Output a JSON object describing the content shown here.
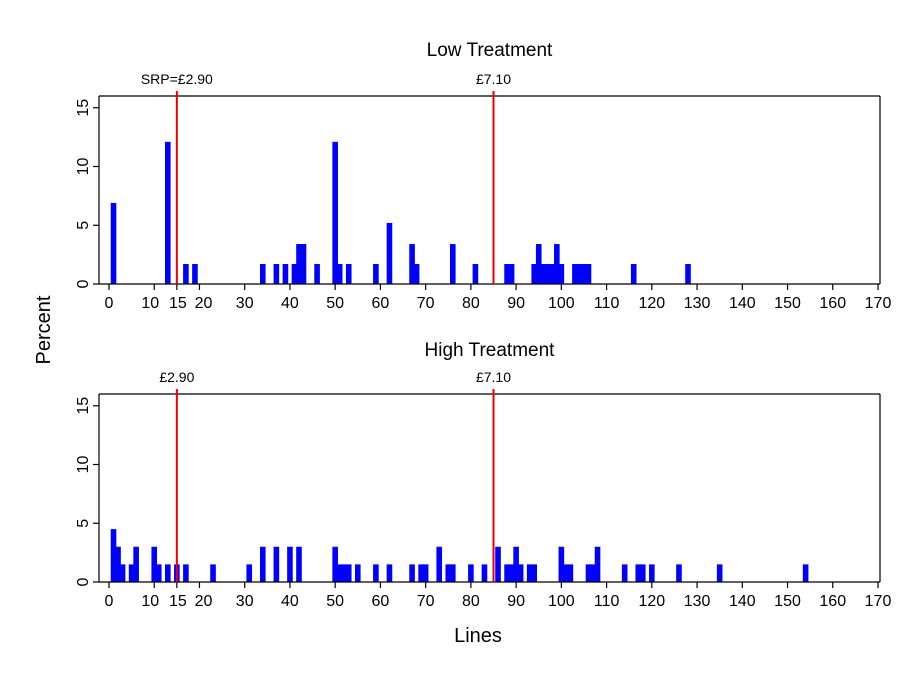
{
  "figure": {
    "ylabel": "Percent",
    "xlabel": "Lines"
  },
  "colors": {
    "bar": "#0000ff",
    "reference_line": "#ee0000",
    "axis": "#000000"
  },
  "chart_data": [
    {
      "type": "bar",
      "title": "Low Treatment",
      "xlabel": "Lines",
      "ylabel": "Percent",
      "xlim": [
        -2,
        172
      ],
      "ylim": [
        0,
        16
      ],
      "x_ticks": [
        0,
        10,
        15,
        20,
        30,
        40,
        50,
        60,
        70,
        80,
        90,
        100,
        110,
        120,
        130,
        140,
        150,
        160,
        170
      ],
      "y_ticks": [
        0,
        5,
        10,
        15
      ],
      "grid": false,
      "reference_lines": [
        {
          "x": 15,
          "label": "SRP=£2.90"
        },
        {
          "x": 85,
          "label": "£7.10"
        }
      ],
      "x": [
        1,
        13,
        17,
        19,
        34,
        37,
        39,
        41,
        42,
        43,
        46,
        50,
        51,
        53,
        59,
        62,
        67,
        68,
        76,
        81,
        88,
        89,
        94,
        95,
        96,
        97,
        98,
        99,
        100,
        103,
        104,
        105,
        106,
        116,
        128
      ],
      "values": [
        6.9,
        12.1,
        1.7,
        1.7,
        1.7,
        1.7,
        1.7,
        1.7,
        3.4,
        3.4,
        1.7,
        12.1,
        1.7,
        1.7,
        1.7,
        5.2,
        3.4,
        1.7,
        3.4,
        1.7,
        1.7,
        1.7,
        1.7,
        3.4,
        1.7,
        1.7,
        1.7,
        3.4,
        1.7,
        1.7,
        1.7,
        1.7,
        1.7,
        1.7,
        1.7
      ]
    },
    {
      "type": "bar",
      "title": "High Treatment",
      "xlabel": "Lines",
      "ylabel": "Percent",
      "xlim": [
        -2,
        172
      ],
      "ylim": [
        0,
        16
      ],
      "x_ticks": [
        0,
        10,
        15,
        20,
        30,
        40,
        50,
        60,
        70,
        80,
        90,
        100,
        110,
        120,
        130,
        140,
        150,
        160,
        170
      ],
      "y_ticks": [
        0,
        5,
        10,
        15
      ],
      "grid": false,
      "reference_lines": [
        {
          "x": 15,
          "label": "£2.90"
        },
        {
          "x": 85,
          "label": "£7.10"
        }
      ],
      "x": [
        1,
        2,
        3,
        5,
        6,
        10,
        11,
        13,
        15,
        17,
        23,
        31,
        34,
        37,
        40,
        42,
        50,
        51,
        52,
        53,
        55,
        59,
        62,
        67,
        69,
        70,
        73,
        75,
        76,
        80,
        83,
        86,
        88,
        89,
        90,
        91,
        93,
        94,
        100,
        101,
        102,
        106,
        107,
        108,
        114,
        117,
        118,
        120,
        126,
        135,
        154
      ],
      "values": [
        4.5,
        3.0,
        1.5,
        1.5,
        3.0,
        3.0,
        1.5,
        1.5,
        1.5,
        1.5,
        1.5,
        1.5,
        3.0,
        3.0,
        3.0,
        3.0,
        3.0,
        1.5,
        1.5,
        1.5,
        1.5,
        1.5,
        1.5,
        1.5,
        1.5,
        1.5,
        3.0,
        1.5,
        1.5,
        1.5,
        1.5,
        3.0,
        1.5,
        1.5,
        3.0,
        1.5,
        1.5,
        1.5,
        3.0,
        1.5,
        1.5,
        1.5,
        1.5,
        3.0,
        1.5,
        1.5,
        1.5,
        1.5,
        1.5,
        1.5,
        1.5
      ]
    }
  ]
}
